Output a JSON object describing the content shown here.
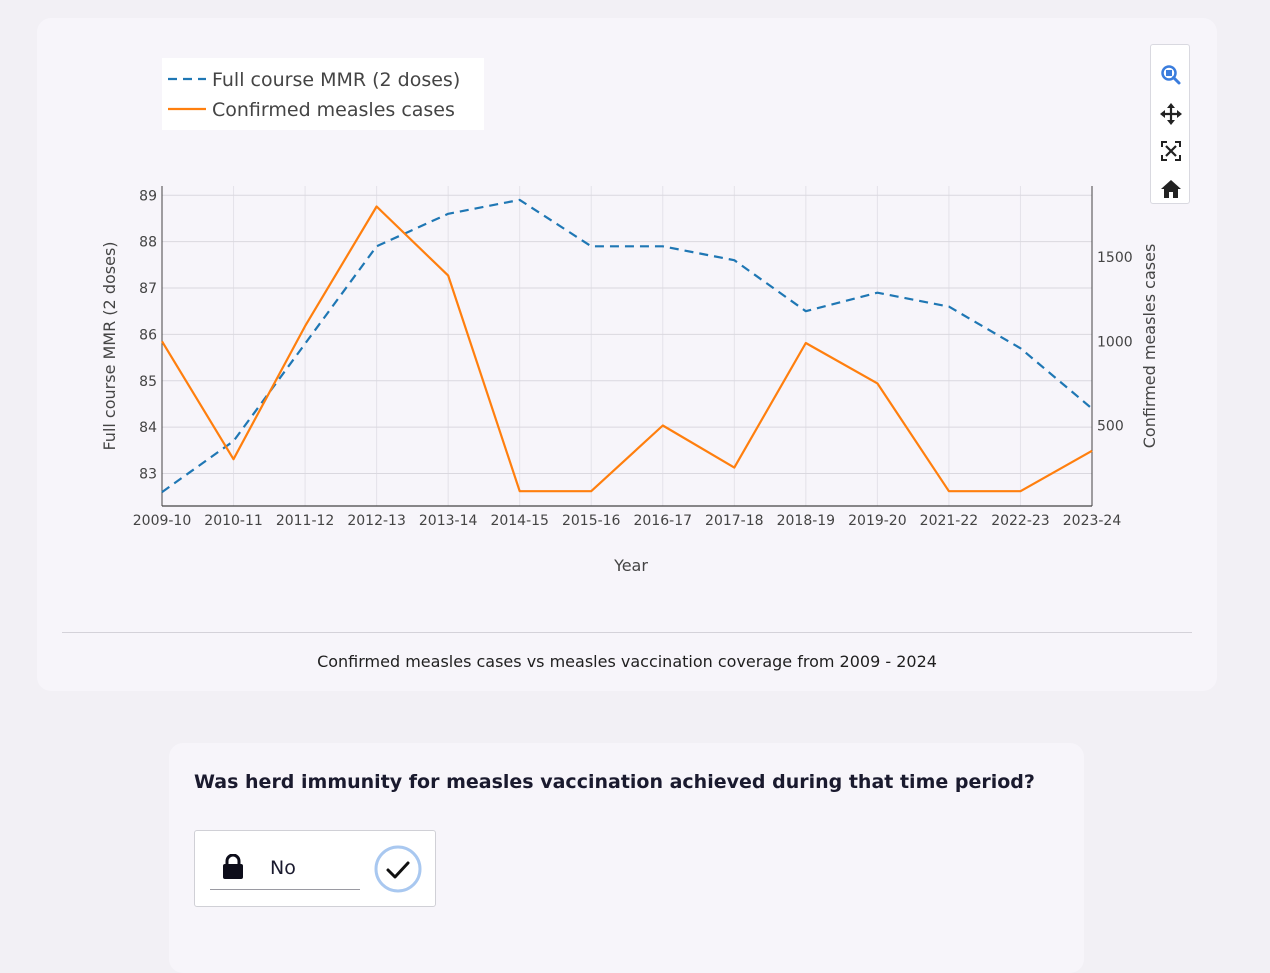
{
  "chart_data": {
    "type": "line",
    "title": "",
    "xlabel": "Year",
    "ylabel_left": "Full course MMR (2 doses)",
    "ylabel_right": "Confirmed measles cases",
    "categories": [
      "2009-10",
      "2010-11",
      "2011-12",
      "2012-13",
      "2013-14",
      "2014-15",
      "2015-16",
      "2016-17",
      "2017-18",
      "2018-19",
      "2019-20",
      "2021-22",
      "2022-23",
      "2023-24"
    ],
    "series": [
      {
        "name": "Full course MMR (2 doses)",
        "axis": "left",
        "style": "dashed",
        "color": "#1f77b4",
        "values": [
          82.6,
          83.7,
          85.8,
          87.9,
          88.6,
          88.9,
          87.9,
          87.9,
          87.6,
          86.5,
          86.9,
          86.6,
          85.7,
          84.4
        ]
      },
      {
        "name": "Confirmed measles cases",
        "axis": "right",
        "style": "solid",
        "color": "#ff7f0e",
        "values": [
          1000,
          300,
          1090,
          1800,
          1390,
          110,
          110,
          500,
          250,
          990,
          750,
          110,
          110,
          350
        ]
      }
    ],
    "ylim_left": [
      82.3,
      89.2
    ],
    "yticks_left": [
      83,
      84,
      85,
      86,
      87,
      88,
      89
    ],
    "ylim_right": [
      22,
      1922
    ],
    "yticks_right": [
      500,
      1000,
      1500
    ],
    "grid": true,
    "legend_position": "top-left"
  },
  "caption": "Confirmed measles cases vs measles vaccination coverage from 2009 - 2024",
  "modebar": {
    "icons": [
      "zoom-icon",
      "pan-icon",
      "autoscale-icon",
      "reset-axes-icon"
    ],
    "active_color": "#3b7ddd"
  },
  "question": {
    "text": "Was herd immunity for measles vaccination achieved during that time period?",
    "answer": "No"
  }
}
